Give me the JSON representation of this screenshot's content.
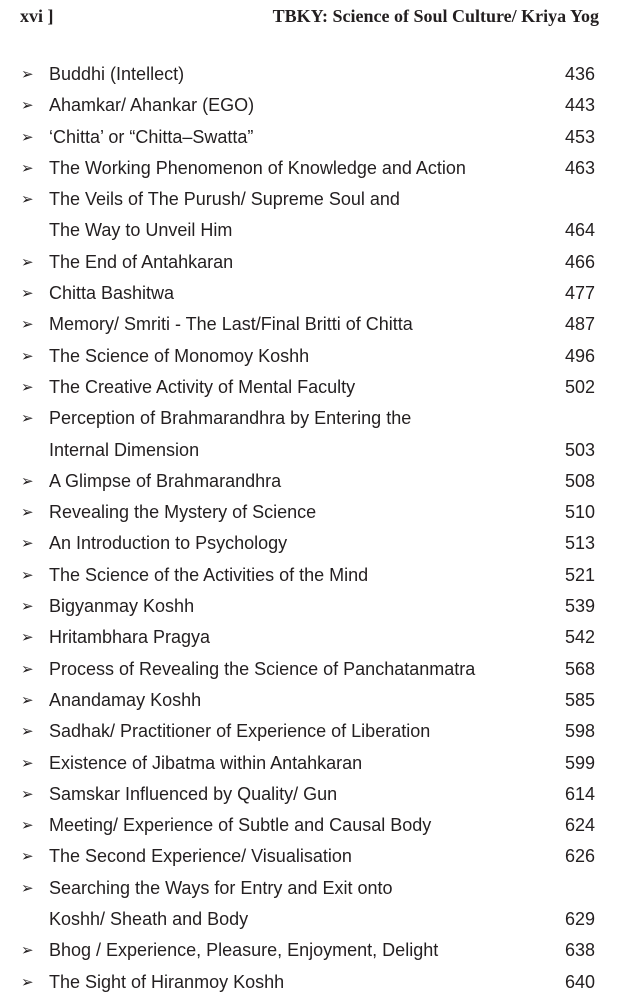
{
  "header": {
    "page_number": "xvi  ]",
    "running_title": "TBKY: Science of Soul Culture/ Kriya Yog"
  },
  "bullet_icon": "arrowhead-bullet",
  "entries": [
    {
      "lines": [
        "Buddhi (Intellect)"
      ],
      "page": "436"
    },
    {
      "lines": [
        "Ahamkar/ Ahankar (EGO)"
      ],
      "page": "443"
    },
    {
      "lines": [
        "‘Chitta’ or “Chitta–Swatta”"
      ],
      "page": "453"
    },
    {
      "lines": [
        "The Working Phenomenon of Knowledge and Action"
      ],
      "page": "463"
    },
    {
      "lines": [
        "The Veils of The Purush/ Supreme Soul and",
        "The Way to Unveil Him"
      ],
      "page": "464"
    },
    {
      "lines": [
        "The End of Antahkaran"
      ],
      "page": "466"
    },
    {
      "lines": [
        "Chitta Bashitwa"
      ],
      "page": "477"
    },
    {
      "lines": [
        "Memory/ Smriti - The Last/Final Britti of Chitta"
      ],
      "page": "487"
    },
    {
      "lines": [
        "The Science of Monomoy Koshh"
      ],
      "page": "496"
    },
    {
      "lines": [
        "The Creative Activity of Mental Faculty"
      ],
      "page": "502"
    },
    {
      "lines": [
        "Perception of Brahmarandhra by Entering the",
        "Internal Dimension"
      ],
      "page": "503"
    },
    {
      "lines": [
        "A Glimpse of Brahmarandhra"
      ],
      "page": "508"
    },
    {
      "lines": [
        "Revealing the Mystery of Science"
      ],
      "page": "510"
    },
    {
      "lines": [
        "An Introduction to Psychology"
      ],
      "page": "513"
    },
    {
      "lines": [
        "The Science of the Activities of the Mind"
      ],
      "page": "521"
    },
    {
      "lines": [
        "Bigyanmay Koshh"
      ],
      "page": "539"
    },
    {
      "lines": [
        "Hritambhara Pragya"
      ],
      "page": "542"
    },
    {
      "lines": [
        "Process of Revealing the Science of Panchatanmatra"
      ],
      "page": "568"
    },
    {
      "lines": [
        "Anandamay Koshh"
      ],
      "page": "585"
    },
    {
      "lines": [
        "Sadhak/ Practitioner of Experience of Liberation"
      ],
      "page": "598"
    },
    {
      "lines": [
        "Existence of Jibatma within Antahkaran"
      ],
      "page": "599"
    },
    {
      "lines": [
        "Samskar Influenced by Quality/ Gun"
      ],
      "page": "614"
    },
    {
      "lines": [
        "Meeting/ Experience of Subtle and Causal Body"
      ],
      "page": "624"
    },
    {
      "lines": [
        "The Second Experience/ Visualisation"
      ],
      "page": "626"
    },
    {
      "lines": [
        "Searching the Ways for Entry and Exit onto",
        "Koshh/ Sheath and Body"
      ],
      "page": "629"
    },
    {
      "lines": [
        "Bhog / Experience, Pleasure, Enjoyment, Delight"
      ],
      "page": "638"
    },
    {
      "lines": [
        "The Sight of Hiranmoy Koshh"
      ],
      "page": "640"
    }
  ]
}
